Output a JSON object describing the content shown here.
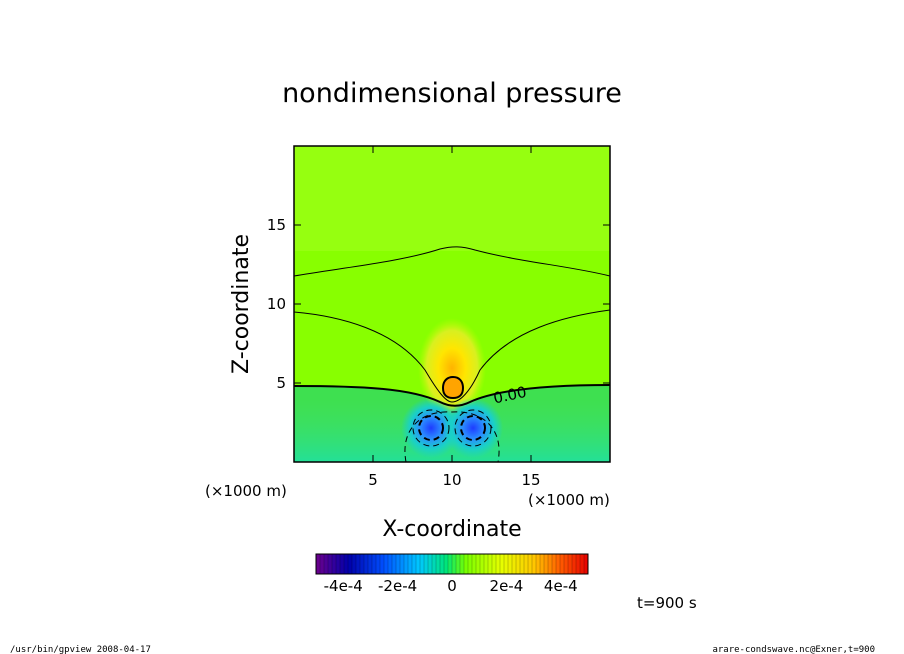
{
  "chart_data": {
    "type": "heatmap",
    "title": "nondimensional pressure",
    "xlabel": "X-coordinate",
    "ylabel": "Z-coordinate",
    "x_unit_label": "(×1000 m)",
    "y_unit_label": "(×1000 m)",
    "xlim": [
      0,
      20
    ],
    "ylim": [
      0,
      20
    ],
    "x_ticks": [
      {
        "value": 5,
        "label": "5"
      },
      {
        "value": 10,
        "label": "10"
      },
      {
        "value": 15,
        "label": "15"
      }
    ],
    "y_ticks": [
      {
        "value": 5,
        "label": "5"
      },
      {
        "value": 10,
        "label": "10"
      },
      {
        "value": 15,
        "label": "15"
      }
    ],
    "colorbar": {
      "range": [
        -0.0005,
        0.0005
      ],
      "tick_labels": [
        {
          "value": -0.0004,
          "label": "-4e-4"
        },
        {
          "value": -0.0002,
          "label": "-2e-4"
        },
        {
          "value": 0,
          "label": "0"
        },
        {
          "value": 0.0002,
          "label": "2e-4"
        },
        {
          "value": 0.0004,
          "label": "4e-4"
        }
      ]
    },
    "contour_label": "0.00",
    "time_label": "t=900 s",
    "background_value": 5e-05,
    "features": [
      {
        "kind": "low",
        "x": 8.7,
        "z": 2.0,
        "value": -0.0003
      },
      {
        "kind": "low",
        "x": 11.3,
        "z": 2.0,
        "value": -0.0003
      },
      {
        "kind": "high",
        "x": 10.0,
        "z": 4.6,
        "value": 0.0001
      }
    ]
  },
  "footer": {
    "left": "/usr/bin/gpview   2008-04-17",
    "right": "arare-condswave.nc@Exner,t=900"
  }
}
